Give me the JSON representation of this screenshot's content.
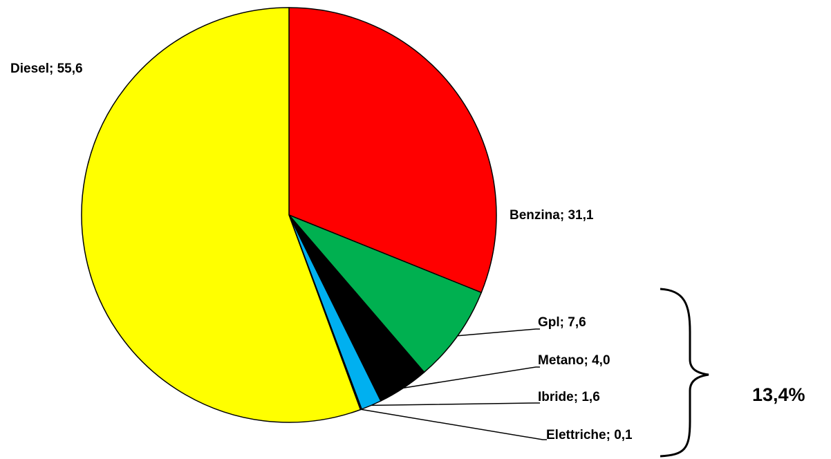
{
  "chart_data": {
    "type": "pie",
    "categories": [
      "Benzina",
      "Gpl",
      "Metano",
      "Ibride",
      "Elettriche",
      "Diesel"
    ],
    "values": [
      31.1,
      7.6,
      4.0,
      1.6,
      0.1,
      55.6
    ],
    "value_labels": [
      "31,1",
      "7,6",
      "4,0",
      "1,6",
      "0,1",
      "55,6"
    ],
    "separator": "; ",
    "colors": [
      "#ff0000",
      "#00b050",
      "#000000",
      "#00b0f0",
      "#1f3864",
      "#ffff00"
    ],
    "annotation": "13,4%"
  }
}
